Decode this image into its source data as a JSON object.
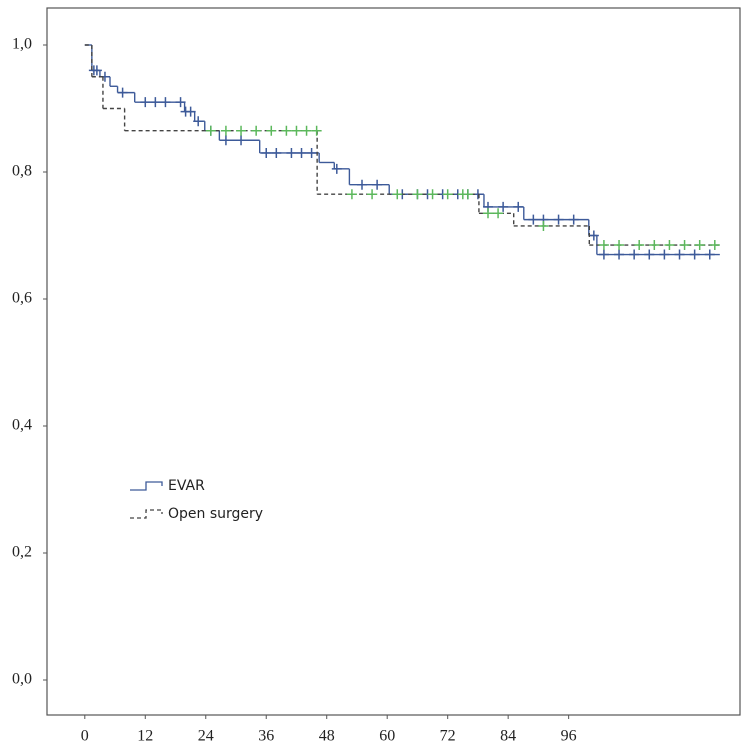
{
  "chart_data": {
    "type": "step",
    "xlim": [
      -7.5,
      130
    ],
    "xticks": [
      0,
      12,
      24,
      36,
      48,
      60,
      72,
      84,
      96
    ],
    "ylim": [
      0,
      1
    ],
    "yticks": [
      {
        "value": 0,
        "label": "0,0"
      },
      {
        "value": 0.2,
        "label": "0,2"
      },
      {
        "value": 0.4,
        "label": "0,4"
      },
      {
        "value": 0.6,
        "label": "0,6"
      },
      {
        "value": 0.8,
        "label": "0,8"
      },
      {
        "value": 1,
        "label": "1,0"
      }
    ],
    "series": [
      {
        "name": "EVAR",
        "color": "#3d5a99",
        "censor_color": "#3d5a99",
        "dashed": false,
        "x": [
          0,
          1.4,
          3,
          5,
          6.5,
          9.9,
          19.8,
          21.8,
          23.8,
          26.7,
          34.7,
          46.5,
          49.5,
          52.5,
          60.4,
          79.2,
          87.1,
          100,
          101.6
        ],
        "values": [
          1,
          0.96,
          0.95,
          0.935,
          0.925,
          0.91,
          0.895,
          0.88,
          0.865,
          0.85,
          0.83,
          0.815,
          0.805,
          0.78,
          0.765,
          0.745,
          0.725,
          0.7,
          0.67
        ],
        "end": 126,
        "censor_x": [
          1.8,
          2.4,
          4,
          7.5,
          12,
          14,
          16,
          19,
          20,
          21,
          22.5,
          25,
          28,
          31,
          36,
          38,
          41,
          43,
          45,
          50,
          55,
          58,
          63,
          66,
          68,
          71,
          74,
          76,
          78,
          80,
          83,
          86,
          89,
          91,
          94,
          97,
          101,
          103,
          106,
          109,
          112,
          115,
          118,
          121,
          124
        ],
        "censor_values": [
          0.96,
          0.96,
          0.95,
          0.925,
          0.91,
          0.91,
          0.91,
          0.91,
          0.895,
          0.895,
          0.88,
          0.865,
          0.85,
          0.85,
          0.83,
          0.83,
          0.83,
          0.83,
          0.83,
          0.805,
          0.78,
          0.78,
          0.765,
          0.765,
          0.765,
          0.765,
          0.765,
          0.765,
          0.765,
          0.745,
          0.745,
          0.745,
          0.725,
          0.725,
          0.725,
          0.725,
          0.7,
          0.67,
          0.67,
          0.67,
          0.67,
          0.67,
          0.67,
          0.67,
          0.67
        ]
      },
      {
        "name": "Open surgery",
        "color": "#444444",
        "censor_color": "#5cb85c",
        "dashed": true,
        "x": [
          0,
          1.4,
          3.6,
          7.9,
          46.1,
          78.2,
          85.1,
          100.1
        ],
        "values": [
          1,
          0.95,
          0.9,
          0.865,
          0.765,
          0.735,
          0.715,
          0.685
        ],
        "end": 126,
        "censor_x": [
          25,
          28,
          31,
          34,
          37,
          40,
          42,
          44,
          46,
          53,
          57,
          62,
          66,
          69,
          72,
          75,
          76,
          80,
          82,
          91,
          103,
          106,
          110,
          113,
          116,
          119,
          122,
          125
        ],
        "censor_values": [
          0.865,
          0.865,
          0.865,
          0.865,
          0.865,
          0.865,
          0.865,
          0.865,
          0.865,
          0.765,
          0.765,
          0.765,
          0.765,
          0.765,
          0.765,
          0.765,
          0.765,
          0.735,
          0.735,
          0.715,
          0.685,
          0.685,
          0.685,
          0.685,
          0.685,
          0.685,
          0.685,
          0.685
        ]
      }
    ]
  }
}
